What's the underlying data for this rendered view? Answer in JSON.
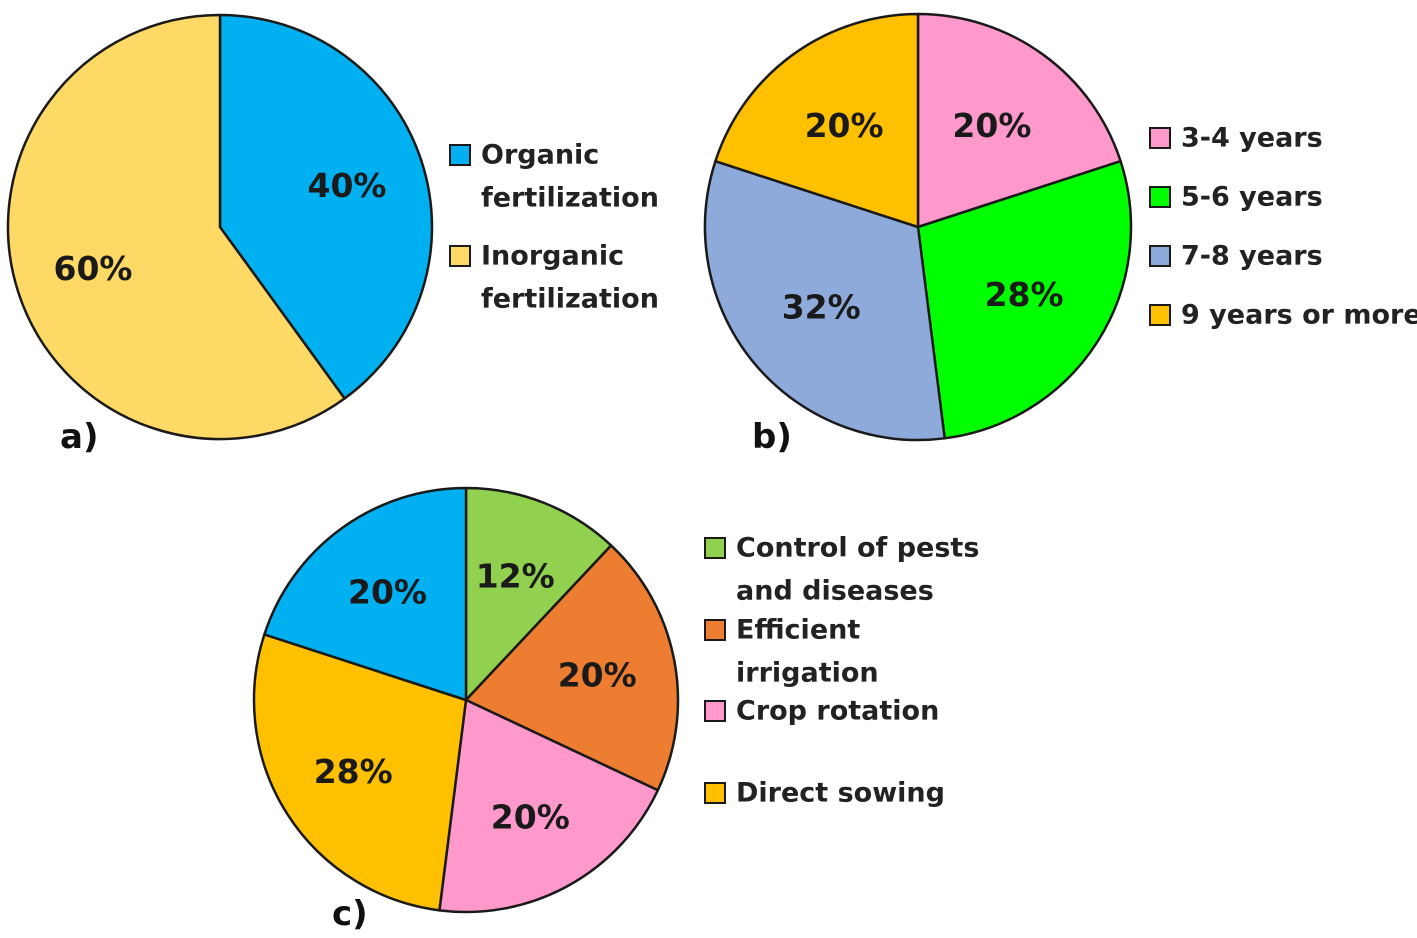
{
  "chart_data": [
    {
      "id": "a",
      "type": "pie",
      "panel_label": "a)",
      "series": [
        {
          "name": "Organic fertilization",
          "legend_lines": [
            "Organic",
            "fertilization"
          ],
          "value": 40,
          "label": "40%",
          "color": "#00b0f0"
        },
        {
          "name": "Inorganic fertilization",
          "legend_lines": [
            "Inorganic",
            "fertilization"
          ],
          "value": 60,
          "label": "60%",
          "color": "#ffd966"
        }
      ],
      "legend_position": "right"
    },
    {
      "id": "b",
      "type": "pie",
      "panel_label": "b)",
      "series": [
        {
          "name": "3-4 years",
          "legend_lines": [
            "3-4 years"
          ],
          "value": 20,
          "label": "20%",
          "color": "#ff99cc"
        },
        {
          "name": "5-6 years",
          "legend_lines": [
            "5-6 years"
          ],
          "value": 28,
          "label": "28%",
          "color": "#00ff00"
        },
        {
          "name": "7-8 years",
          "legend_lines": [
            "7-8 years"
          ],
          "value": 32,
          "label": "32%",
          "color": "#8eaadb"
        },
        {
          "name": "9 years or more",
          "legend_lines": [
            "9 years or more"
          ],
          "value": 20,
          "label": "20%",
          "color": "#ffc000"
        }
      ],
      "legend_position": "right"
    },
    {
      "id": "c",
      "type": "pie",
      "panel_label": "c)",
      "series": [
        {
          "name": "Control of pests and diseases",
          "legend_lines": [
            "Control of pests",
            "and diseases"
          ],
          "value": 12,
          "label": "12%",
          "color": "#92d050"
        },
        {
          "name": "Efficient irrigation",
          "legend_lines": [
            "Efficient",
            "irrigation"
          ],
          "value": 20,
          "label": "20%",
          "color": "#ed7d31"
        },
        {
          "name": "Crop rotation",
          "legend_lines": [
            "Crop rotation"
          ],
          "value": 20,
          "label": "20%",
          "color": "#ff99cc"
        },
        {
          "name": "Direct sowing",
          "legend_lines": [
            "Direct sowing"
          ],
          "value": 28,
          "label": "28%",
          "color": "#ffc000"
        },
        {
          "name": "",
          "legend_lines": [],
          "value": 20,
          "label": "20%",
          "color": "#00b0f0"
        }
      ],
      "legend_position": "right"
    }
  ]
}
